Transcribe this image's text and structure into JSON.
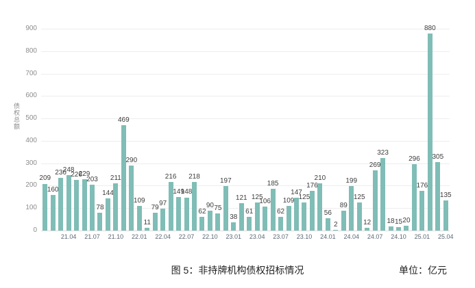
{
  "caption": {
    "title": "图 5：非持牌机构债权招标情况",
    "unit": "单位：亿元"
  },
  "colors": {
    "bar": "#7fbdb6",
    "value_label": "#3c3c3c",
    "ytick": "#8c8c8c",
    "xtick": "#5a6673",
    "gridline": "#ededed",
    "baseline": "#dcdcdc"
  },
  "chart_data": {
    "type": "bar",
    "title": "非持牌机构债权招标情况",
    "xlabel": "",
    "ylabel": "债权总额",
    "unit": "亿元",
    "ylim": [
      0,
      900
    ],
    "yticks": [
      0,
      100,
      200,
      300,
      400,
      500,
      600,
      700,
      800,
      900
    ],
    "grid": true,
    "legend": "none",
    "categories": [
      "21.01",
      "21.02",
      "21.03",
      "21.04",
      "21.05",
      "21.06",
      "21.07",
      "21.08",
      "21.09",
      "21.10",
      "21.11",
      "21.12",
      "22.01",
      "22.02",
      "22.03",
      "22.04",
      "22.05",
      "22.06",
      "22.07",
      "22.08",
      "22.09",
      "22.10",
      "22.11",
      "22.12",
      "23.01",
      "23.02",
      "23.03",
      "23.04",
      "23.05",
      "23.06",
      "23.07",
      "23.08",
      "23.09",
      "23.10",
      "23.11",
      "23.12",
      "24.01",
      "24.02",
      "24.03",
      "24.04",
      "24.05",
      "24.06",
      "24.07",
      "24.08",
      "24.09",
      "24.10",
      "24.11",
      "24.12",
      "25.01",
      "25.02",
      "25.03",
      "25.04"
    ],
    "values": [
      209,
      160,
      236,
      248,
      226,
      229,
      203,
      78,
      144,
      211,
      469,
      290,
      109,
      11,
      79,
      97,
      216,
      149,
      148,
      218,
      62,
      90,
      75,
      197,
      38,
      121,
      61,
      125,
      106,
      185,
      62,
      109,
      147,
      125,
      176,
      210,
      56,
      2,
      89,
      199,
      125,
      12,
      269,
      323,
      18,
      15,
      20,
      296,
      176,
      880,
      305,
      135
    ],
    "visible_xticks": [
      "21.04",
      "21.07",
      "21.10",
      "22.01",
      "22.04",
      "22.07",
      "22.10",
      "23.01",
      "23.04",
      "23.07",
      "23.10",
      "24.01",
      "24.04",
      "24.07",
      "24.10",
      "25.01",
      "25.04"
    ]
  }
}
